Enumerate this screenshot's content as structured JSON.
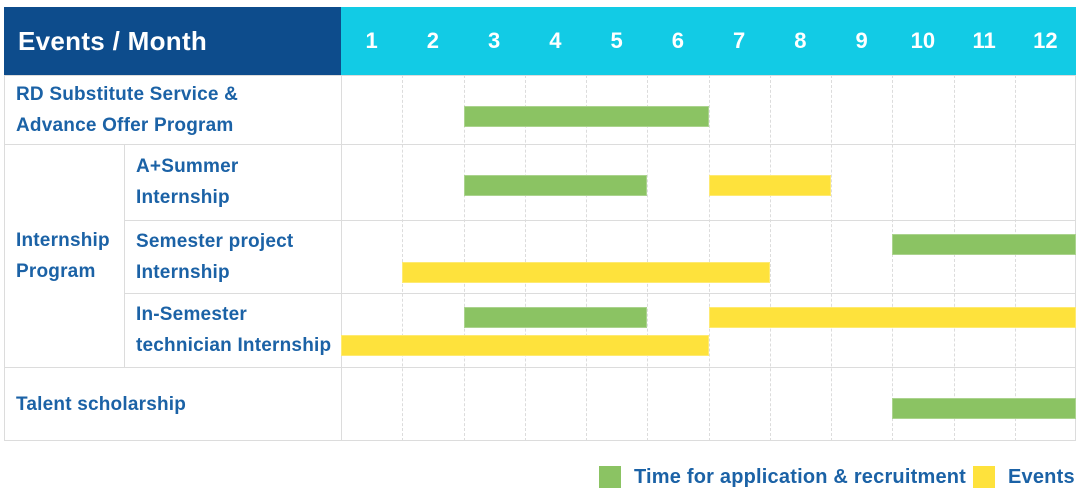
{
  "chart_data": {
    "type": "table",
    "title": "Events / Month",
    "months": [
      "1",
      "2",
      "3",
      "4",
      "5",
      "6",
      "7",
      "8",
      "9",
      "10",
      "11",
      "12"
    ],
    "group_cell": {
      "lines": [
        "Internship",
        "Program"
      ],
      "label": "Internship Program",
      "row_span": [
        1,
        3
      ]
    },
    "rows": [
      {
        "group": "",
        "label": "RD Substitute Service & Advance Offer Program",
        "label_lines": [
          "RD Substitute Service &",
          "Advance Offer Program"
        ],
        "bars": [
          {
            "kind": "application",
            "months": [
              3,
              6
            ],
            "lane": "center"
          }
        ]
      },
      {
        "group": "Internship Program",
        "label": "A+Summer Internship",
        "label_lines": [
          "A+Summer",
          "Internship"
        ],
        "bars": [
          {
            "kind": "application",
            "months": [
              3,
              5
            ],
            "lane": "center"
          },
          {
            "kind": "event",
            "months": [
              7,
              8
            ],
            "lane": "center"
          }
        ]
      },
      {
        "group": "Internship Program",
        "label": "Semester project Internship",
        "label_lines": [
          "Semester project",
          "Internship"
        ],
        "bars": [
          {
            "kind": "application",
            "months": [
              10,
              12
            ],
            "lane": "top"
          },
          {
            "kind": "event",
            "months": [
              2,
              7
            ],
            "lane": "bottom"
          }
        ]
      },
      {
        "group": "Internship Program",
        "label": "In-Semester technician Internship",
        "label_lines": [
          "In-Semester",
          "technician Internship"
        ],
        "bars": [
          {
            "kind": "application",
            "months": [
              3,
              5
            ],
            "lane": "top"
          },
          {
            "kind": "event",
            "months": [
              7,
              12
            ],
            "lane": "top"
          },
          {
            "kind": "event",
            "months": [
              1,
              6
            ],
            "lane": "bottom"
          }
        ]
      },
      {
        "group": "",
        "label": "Talent scholarship",
        "label_lines": [
          "Talent scholarship"
        ],
        "bars": [
          {
            "kind": "application",
            "months": [
              10,
              12
            ],
            "lane": "center"
          }
        ]
      }
    ],
    "legend": [
      {
        "kind": "application",
        "label": "Time for application & recruitment"
      },
      {
        "kind": "event",
        "label": "Events"
      }
    ],
    "legend_position": "bottom-right",
    "grid": true
  },
  "colors": {
    "navy": "#0d4c8c",
    "cyan": "#12cbe5",
    "green": "#8bc363",
    "yellow": "#fee23c",
    "label_blue": "#1b62a6",
    "grid": "#dcdcdc"
  }
}
